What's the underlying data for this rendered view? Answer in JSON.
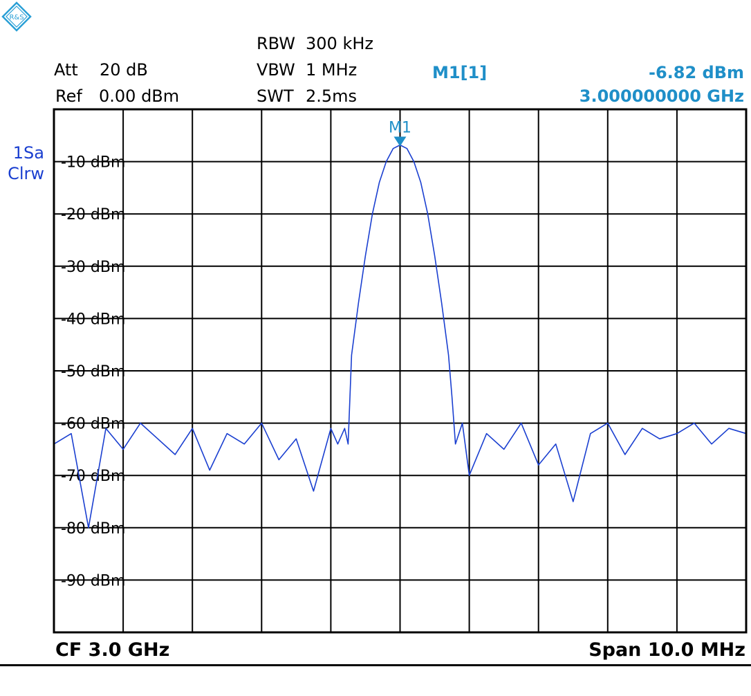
{
  "header": {
    "logo_text": "R&S",
    "att_label": "Att",
    "att_value": "20 dB",
    "ref_label": "Ref",
    "ref_value": "0.00 dBm",
    "rbw_label": "RBW",
    "rbw_value": "300 kHz",
    "vbw_label": "VBW",
    "vbw_value": "1 MHz",
    "swt_label": "SWT",
    "swt_value": "2.5ms"
  },
  "marker": {
    "name": "M1[1]",
    "level": "-6.82 dBm",
    "frequency": "3.000000000 GHz",
    "label": "M1"
  },
  "trace": {
    "line1": "1Sa",
    "line2": "Clrw"
  },
  "footer": {
    "center_frequency": "CF 3.0 GHz",
    "span": "Span 10.0 MHz"
  },
  "colors": {
    "trace": "#1a3fd0",
    "marker": "#1f8fc8",
    "grid": "#000000",
    "logo": "#2a9fd6"
  },
  "chart_data": {
    "type": "line",
    "title": "",
    "xlabel": "",
    "ylabel": "",
    "x_unit": "GHz",
    "y_unit": "dBm",
    "center_frequency_ghz": 3.0,
    "span_mhz": 10.0,
    "xlim_ghz": [
      2.995,
      3.005
    ],
    "ylim": [
      -100,
      0
    ],
    "grid": true,
    "ytick_values": [
      -10,
      -20,
      -30,
      -40,
      -50,
      -60,
      -70,
      -80,
      -90
    ],
    "ytick_labels": [
      "-10 dBm",
      "-20 dBm",
      "-30 dBm",
      "-40 dBm",
      "-50 dBm",
      "-60 dBm",
      "-70 dBm",
      "-80 dBm",
      "-90 dBm"
    ],
    "marker_point": {
      "x_ghz": 3.0,
      "y": -6.82
    },
    "series": [
      {
        "x_ghz": [
          2.995,
          2.99525,
          2.9955,
          2.99575,
          2.996,
          2.99625,
          2.9965,
          2.99675,
          2.997,
          2.99725,
          2.9975,
          2.99775,
          2.998,
          2.99825,
          2.9985,
          2.99875,
          2.999,
          2.9991,
          2.9992,
          2.99925,
          2.9993,
          2.9994,
          2.9995,
          2.9996,
          2.9997,
          2.9998,
          2.9999,
          3.0,
          3.0001,
          3.0002,
          3.0003,
          3.0004,
          3.0005,
          3.0006,
          3.0007,
          3.00075,
          3.0008,
          3.0009,
          3.001,
          3.00125,
          3.0015,
          3.00175,
          3.002,
          3.00225,
          3.0025,
          3.00275,
          3.003,
          3.00325,
          3.0035,
          3.00375,
          3.004,
          3.00425,
          3.0045,
          3.00475,
          3.005
        ],
        "y": [
          -64,
          -62,
          -80,
          -61,
          -65,
          -60,
          -63,
          -66,
          -61,
          -69,
          -62,
          -64,
          -60,
          -67,
          -63,
          -73,
          -61,
          -64,
          -61,
          -64,
          -47,
          -37,
          -28,
          -20,
          -14,
          -10,
          -7.5,
          -6.82,
          -7.5,
          -10,
          -14,
          -20,
          -28,
          -37,
          -47,
          -55,
          -64,
          -60,
          -70,
          -62,
          -65,
          -60,
          -68,
          -64,
          -75,
          -62,
          -60,
          -66,
          -61,
          -63,
          -62,
          -60,
          -64,
          -61,
          -62
        ]
      }
    ]
  }
}
